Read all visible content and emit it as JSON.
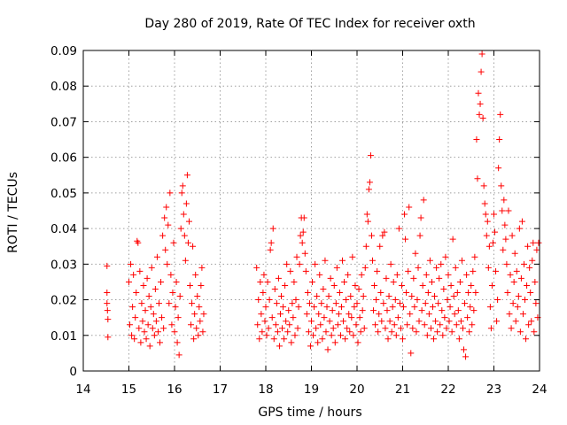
{
  "chart_data": {
    "type": "scatter",
    "title": "Day 280 of 2019, Rate Of TEC Index for receiver oxth",
    "xlabel": "GPS time / hours",
    "ylabel": "ROTI / TECUs",
    "xlim": [
      14,
      24
    ],
    "ylim": [
      0,
      0.09
    ],
    "x_ticks": [
      "14",
      "15",
      "16",
      "17",
      "18",
      "19",
      "20",
      "21",
      "22",
      "23",
      "24"
    ],
    "y_ticks": [
      "0",
      "0.01",
      "0.02",
      "0.03",
      "0.04",
      "0.05",
      "0.06",
      "0.07",
      "0.08",
      "0.09"
    ],
    "grid": true,
    "legend": "none",
    "marker": "plus",
    "color": "#ff0000",
    "points": [
      [
        14.52,
        0.0295
      ],
      [
        14.52,
        0.022
      ],
      [
        14.52,
        0.019
      ],
      [
        14.53,
        0.017
      ],
      [
        14.54,
        0.0145
      ],
      [
        14.54,
        0.0095
      ],
      [
        15.0,
        0.025
      ],
      [
        15.02,
        0.013
      ],
      [
        15.04,
        0.03
      ],
      [
        15.06,
        0.01
      ],
      [
        15.08,
        0.018
      ],
      [
        15.1,
        0.027
      ],
      [
        15.12,
        0.009
      ],
      [
        15.14,
        0.015
      ],
      [
        15.16,
        0.022
      ],
      [
        15.18,
        0.0365
      ],
      [
        15.2,
        0.036
      ],
      [
        15.22,
        0.012
      ],
      [
        15.24,
        0.028
      ],
      [
        15.26,
        0.008
      ],
      [
        15.28,
        0.019
      ],
      [
        15.3,
        0.014
      ],
      [
        15.32,
        0.024
      ],
      [
        15.34,
        0.011
      ],
      [
        15.36,
        0.017
      ],
      [
        15.38,
        0.009
      ],
      [
        15.4,
        0.026
      ],
      [
        15.42,
        0.013
      ],
      [
        15.44,
        0.021
      ],
      [
        15.46,
        0.007
      ],
      [
        15.48,
        0.018
      ],
      [
        15.5,
        0.029
      ],
      [
        15.52,
        0.012
      ],
      [
        15.54,
        0.016
      ],
      [
        15.56,
        0.01
      ],
      [
        15.58,
        0.023
      ],
      [
        15.6,
        0.014
      ],
      [
        15.62,
        0.032
      ],
      [
        15.64,
        0.011
      ],
      [
        15.66,
        0.019
      ],
      [
        15.68,
        0.008
      ],
      [
        15.7,
        0.025
      ],
      [
        15.72,
        0.015
      ],
      [
        15.74,
        0.038
      ],
      [
        15.76,
        0.012
      ],
      [
        15.78,
        0.043
      ],
      [
        15.8,
        0.034
      ],
      [
        15.82,
        0.046
      ],
      [
        15.84,
        0.03
      ],
      [
        15.86,
        0.041
      ],
      [
        15.88,
        0.019
      ],
      [
        15.9,
        0.05
      ],
      [
        15.92,
        0.027
      ],
      [
        15.94,
        0.013
      ],
      [
        15.96,
        0.022
      ],
      [
        15.98,
        0.036
      ],
      [
        16.0,
        0.011
      ],
      [
        16.02,
        0.018
      ],
      [
        16.04,
        0.025
      ],
      [
        16.06,
        0.008
      ],
      [
        16.08,
        0.015
      ],
      [
        16.1,
        0.0045
      ],
      [
        16.12,
        0.021
      ],
      [
        16.14,
        0.04
      ],
      [
        16.16,
        0.05
      ],
      [
        16.18,
        0.052
      ],
      [
        16.2,
        0.044
      ],
      [
        16.22,
        0.038
      ],
      [
        16.24,
        0.031
      ],
      [
        16.26,
        0.047
      ],
      [
        16.28,
        0.055
      ],
      [
        16.3,
        0.036
      ],
      [
        16.32,
        0.042
      ],
      [
        16.34,
        0.024
      ],
      [
        16.36,
        0.013
      ],
      [
        16.38,
        0.019
      ],
      [
        16.4,
        0.035
      ],
      [
        16.42,
        0.009
      ],
      [
        16.44,
        0.016
      ],
      [
        16.46,
        0.027
      ],
      [
        16.48,
        0.012
      ],
      [
        16.5,
        0.021
      ],
      [
        16.52,
        0.01
      ],
      [
        16.54,
        0.018
      ],
      [
        16.56,
        0.014
      ],
      [
        16.58,
        0.024
      ],
      [
        16.6,
        0.029
      ],
      [
        16.62,
        0.011
      ],
      [
        16.64,
        0.016
      ],
      [
        17.8,
        0.029
      ],
      [
        17.82,
        0.013
      ],
      [
        17.84,
        0.02
      ],
      [
        17.86,
        0.009
      ],
      [
        17.88,
        0.025
      ],
      [
        17.9,
        0.016
      ],
      [
        17.92,
        0.011
      ],
      [
        17.94,
        0.022
      ],
      [
        17.96,
        0.027
      ],
      [
        17.98,
        0.014
      ],
      [
        18.0,
        0.018
      ],
      [
        18.02,
        0.01
      ],
      [
        18.04,
        0.025
      ],
      [
        18.06,
        0.012
      ],
      [
        18.08,
        0.02
      ],
      [
        18.1,
        0.034
      ],
      [
        18.12,
        0.036
      ],
      [
        18.14,
        0.015
      ],
      [
        18.16,
        0.04
      ],
      [
        18.18,
        0.009
      ],
      [
        18.2,
        0.023
      ],
      [
        18.22,
        0.013
      ],
      [
        18.24,
        0.019
      ],
      [
        18.26,
        0.011
      ],
      [
        18.28,
        0.026
      ],
      [
        18.3,
        0.007
      ],
      [
        18.32,
        0.016
      ],
      [
        18.34,
        0.021
      ],
      [
        18.36,
        0.012
      ],
      [
        18.38,
        0.018
      ],
      [
        18.4,
        0.009
      ],
      [
        18.42,
        0.024
      ],
      [
        18.44,
        0.014
      ],
      [
        18.46,
        0.03
      ],
      [
        18.48,
        0.011
      ],
      [
        18.5,
        0.017
      ],
      [
        18.52,
        0.013
      ],
      [
        18.54,
        0.028
      ],
      [
        18.56,
        0.008
      ],
      [
        18.58,
        0.019
      ],
      [
        18.6,
        0.015
      ],
      [
        18.62,
        0.025
      ],
      [
        18.64,
        0.01
      ],
      [
        18.66,
        0.02
      ],
      [
        18.68,
        0.032
      ],
      [
        18.7,
        0.012
      ],
      [
        18.72,
        0.018
      ],
      [
        18.74,
        0.03
      ],
      [
        18.76,
        0.038
      ],
      [
        18.78,
        0.043
      ],
      [
        18.8,
        0.036
      ],
      [
        18.82,
        0.039
      ],
      [
        18.84,
        0.043
      ],
      [
        18.86,
        0.033
      ],
      [
        18.88,
        0.028
      ],
      [
        18.9,
        0.016
      ],
      [
        18.92,
        0.022
      ],
      [
        18.94,
        0.011
      ],
      [
        18.96,
        0.019
      ],
      [
        18.98,
        0.007
      ],
      [
        19.0,
        0.014
      ],
      [
        19.02,
        0.025
      ],
      [
        19.04,
        0.01
      ],
      [
        19.06,
        0.018
      ],
      [
        19.08,
        0.03
      ],
      [
        19.1,
        0.012
      ],
      [
        19.12,
        0.021
      ],
      [
        19.14,
        0.008
      ],
      [
        19.16,
        0.016
      ],
      [
        19.18,
        0.027
      ],
      [
        19.2,
        0.013
      ],
      [
        19.22,
        0.019
      ],
      [
        19.24,
        0.009
      ],
      [
        19.26,
        0.023
      ],
      [
        19.28,
        0.015
      ],
      [
        19.3,
        0.031
      ],
      [
        19.32,
        0.011
      ],
      [
        19.34,
        0.018
      ],
      [
        19.36,
        0.006
      ],
      [
        19.38,
        0.021
      ],
      [
        19.4,
        0.014
      ],
      [
        19.42,
        0.026
      ],
      [
        19.44,
        0.01
      ],
      [
        19.46,
        0.017
      ],
      [
        19.48,
        0.012
      ],
      [
        19.5,
        0.024
      ],
      [
        19.52,
        0.008
      ],
      [
        19.54,
        0.019
      ],
      [
        19.56,
        0.029
      ],
      [
        19.58,
        0.013
      ],
      [
        19.6,
        0.016
      ],
      [
        19.62,
        0.022
      ],
      [
        19.64,
        0.01
      ],
      [
        19.66,
        0.018
      ],
      [
        19.68,
        0.031
      ],
      [
        19.7,
        0.014
      ],
      [
        19.72,
        0.025
      ],
      [
        19.74,
        0.009
      ],
      [
        19.76,
        0.02
      ],
      [
        19.78,
        0.012
      ],
      [
        19.8,
        0.027
      ],
      [
        19.82,
        0.016
      ],
      [
        19.84,
        0.011
      ],
      [
        19.86,
        0.021
      ],
      [
        19.88,
        0.015
      ],
      [
        19.9,
        0.032
      ],
      [
        19.92,
        0.01
      ],
      [
        19.94,
        0.018
      ],
      [
        19.96,
        0.024
      ],
      [
        19.98,
        0.013
      ],
      [
        20.0,
        0.019
      ],
      [
        20.02,
        0.008
      ],
      [
        20.04,
        0.023
      ],
      [
        20.06,
        0.015
      ],
      [
        20.08,
        0.011
      ],
      [
        20.1,
        0.027
      ],
      [
        20.12,
        0.017
      ],
      [
        20.14,
        0.021
      ],
      [
        20.16,
        0.012
      ],
      [
        20.18,
        0.029
      ],
      [
        20.2,
        0.035
      ],
      [
        20.22,
        0.044
      ],
      [
        20.24,
        0.042
      ],
      [
        20.26,
        0.051
      ],
      [
        20.28,
        0.053
      ],
      [
        20.3,
        0.0605
      ],
      [
        20.32,
        0.038
      ],
      [
        20.34,
        0.031
      ],
      [
        20.36,
        0.017
      ],
      [
        20.38,
        0.024
      ],
      [
        20.4,
        0.013
      ],
      [
        20.42,
        0.02
      ],
      [
        20.44,
        0.028
      ],
      [
        20.46,
        0.011
      ],
      [
        20.48,
        0.016
      ],
      [
        20.5,
        0.035
      ],
      [
        20.52,
        0.022
      ],
      [
        20.54,
        0.014
      ],
      [
        20.56,
        0.038
      ],
      [
        20.58,
        0.019
      ],
      [
        20.6,
        0.039
      ],
      [
        20.62,
        0.012
      ],
      [
        20.64,
        0.026
      ],
      [
        20.66,
        0.017
      ],
      [
        20.68,
        0.009
      ],
      [
        20.7,
        0.021
      ],
      [
        20.72,
        0.014
      ],
      [
        20.74,
        0.03
      ],
      [
        20.76,
        0.011
      ],
      [
        20.78,
        0.018
      ],
      [
        20.8,
        0.025
      ],
      [
        20.82,
        0.013
      ],
      [
        20.84,
        0.02
      ],
      [
        20.86,
        0.01
      ],
      [
        20.88,
        0.027
      ],
      [
        20.9,
        0.015
      ],
      [
        20.92,
        0.04
      ],
      [
        20.94,
        0.019
      ],
      [
        20.96,
        0.012
      ],
      [
        20.98,
        0.024
      ],
      [
        21.0,
        0.009
      ],
      [
        21.02,
        0.018
      ],
      [
        21.04,
        0.044
      ],
      [
        21.06,
        0.037
      ],
      [
        21.08,
        0.022
      ],
      [
        21.1,
        0.013
      ],
      [
        21.12,
        0.028
      ],
      [
        21.14,
        0.046
      ],
      [
        21.16,
        0.016
      ],
      [
        21.18,
        0.005
      ],
      [
        21.2,
        0.021
      ],
      [
        21.22,
        0.012
      ],
      [
        21.24,
        0.026
      ],
      [
        21.26,
        0.018
      ],
      [
        21.28,
        0.033
      ],
      [
        21.3,
        0.011
      ],
      [
        21.32,
        0.02
      ],
      [
        21.34,
        0.029
      ],
      [
        21.36,
        0.014
      ],
      [
        21.38,
        0.038
      ],
      [
        21.4,
        0.043
      ],
      [
        21.42,
        0.017
      ],
      [
        21.44,
        0.024
      ],
      [
        21.46,
        0.048
      ],
      [
        21.48,
        0.013
      ],
      [
        21.5,
        0.019
      ],
      [
        21.52,
        0.027
      ],
      [
        21.54,
        0.01
      ],
      [
        21.56,
        0.022
      ],
      [
        21.58,
        0.016
      ],
      [
        21.6,
        0.031
      ],
      [
        21.62,
        0.012
      ],
      [
        21.64,
        0.025
      ],
      [
        21.66,
        0.018
      ],
      [
        21.68,
        0.009
      ],
      [
        21.7,
        0.021
      ],
      [
        21.72,
        0.014
      ],
      [
        21.74,
        0.029
      ],
      [
        21.76,
        0.011
      ],
      [
        21.78,
        0.019
      ],
      [
        21.8,
        0.026
      ],
      [
        21.82,
        0.013
      ],
      [
        21.84,
        0.03
      ],
      [
        21.86,
        0.017
      ],
      [
        21.88,
        0.01
      ],
      [
        21.9,
        0.023
      ],
      [
        21.92,
        0.015
      ],
      [
        21.94,
        0.032
      ],
      [
        21.96,
        0.012
      ],
      [
        21.98,
        0.02
      ],
      [
        22.0,
        0.027
      ],
      [
        22.02,
        0.014
      ],
      [
        22.04,
        0.018
      ],
      [
        22.06,
        0.024
      ],
      [
        22.08,
        0.011
      ],
      [
        22.1,
        0.037
      ],
      [
        22.12,
        0.021
      ],
      [
        22.14,
        0.016
      ],
      [
        22.16,
        0.029
      ],
      [
        22.18,
        0.013
      ],
      [
        22.2,
        0.022
      ],
      [
        22.22,
        0.017
      ],
      [
        22.24,
        0.009
      ],
      [
        22.26,
        0.025
      ],
      [
        22.28,
        0.014
      ],
      [
        22.3,
        0.031
      ],
      [
        22.32,
        0.012
      ],
      [
        22.34,
        0.006
      ],
      [
        22.36,
        0.019
      ],
      [
        22.38,
        0.004
      ],
      [
        22.4,
        0.027
      ],
      [
        22.42,
        0.015
      ],
      [
        22.44,
        0.022
      ],
      [
        22.46,
        0.011
      ],
      [
        22.48,
        0.018
      ],
      [
        22.5,
        0.024
      ],
      [
        22.52,
        0.013
      ],
      [
        22.54,
        0.028
      ],
      [
        22.56,
        0.017
      ],
      [
        22.58,
        0.032
      ],
      [
        22.6,
        0.022
      ],
      [
        22.62,
        0.065
      ],
      [
        22.64,
        0.054
      ],
      [
        22.66,
        0.078
      ],
      [
        22.68,
        0.072
      ],
      [
        22.7,
        0.075
      ],
      [
        22.72,
        0.084
      ],
      [
        22.74,
        0.089
      ],
      [
        22.76,
        0.071
      ],
      [
        22.78,
        0.052
      ],
      [
        22.8,
        0.047
      ],
      [
        22.82,
        0.044
      ],
      [
        22.84,
        0.038
      ],
      [
        22.86,
        0.042
      ],
      [
        22.88,
        0.029
      ],
      [
        22.9,
        0.035
      ],
      [
        22.92,
        0.018
      ],
      [
        22.94,
        0.012
      ],
      [
        22.96,
        0.024
      ],
      [
        22.98,
        0.036
      ],
      [
        23.0,
        0.044
      ],
      [
        23.02,
        0.039
      ],
      [
        23.04,
        0.028
      ],
      [
        23.06,
        0.014
      ],
      [
        23.08,
        0.02
      ],
      [
        23.1,
        0.057
      ],
      [
        23.12,
        0.065
      ],
      [
        23.14,
        0.072
      ],
      [
        23.16,
        0.052
      ],
      [
        23.18,
        0.045
      ],
      [
        23.2,
        0.034
      ],
      [
        23.22,
        0.048
      ],
      [
        23.24,
        0.041
      ],
      [
        23.26,
        0.037
      ],
      [
        23.28,
        0.03
      ],
      [
        23.3,
        0.022
      ],
      [
        23.32,
        0.045
      ],
      [
        23.34,
        0.016
      ],
      [
        23.36,
        0.027
      ],
      [
        23.38,
        0.012
      ],
      [
        23.4,
        0.038
      ],
      [
        23.42,
        0.019
      ],
      [
        23.44,
        0.025
      ],
      [
        23.46,
        0.033
      ],
      [
        23.48,
        0.014
      ],
      [
        23.5,
        0.028
      ],
      [
        23.52,
        0.018
      ],
      [
        23.54,
        0.021
      ],
      [
        23.56,
        0.04
      ],
      [
        23.58,
        0.011
      ],
      [
        23.6,
        0.026
      ],
      [
        23.62,
        0.042
      ],
      [
        23.64,
        0.016
      ],
      [
        23.66,
        0.03
      ],
      [
        23.68,
        0.02
      ],
      [
        23.7,
        0.009
      ],
      [
        23.72,
        0.024
      ],
      [
        23.74,
        0.035
      ],
      [
        23.76,
        0.013
      ],
      [
        23.78,
        0.029
      ],
      [
        23.8,
        0.022
      ],
      [
        23.82,
        0.014
      ],
      [
        23.84,
        0.031
      ],
      [
        23.86,
        0.036
      ],
      [
        23.88,
        0.011
      ],
      [
        23.9,
        0.025
      ],
      [
        23.92,
        0.019
      ],
      [
        23.94,
        0.034
      ],
      [
        23.96,
        0.015
      ],
      [
        23.98,
        0.036
      ]
    ]
  }
}
